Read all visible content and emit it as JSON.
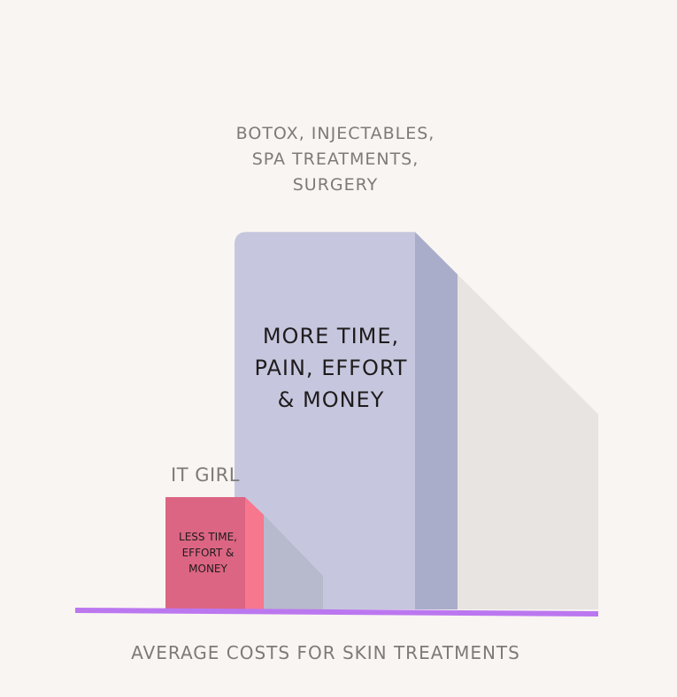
{
  "chart_data": {
    "type": "bar",
    "xlabel": "AVERAGE COSTS FOR SKIN TREATMENTS",
    "ylabel": "",
    "title": "",
    "categories": [
      "IT GIRL",
      "BOTOX, INJECTABLES, SPA TREATMENTS, SURGERY"
    ],
    "values": [
      1,
      3.36
    ],
    "ylim": [
      0,
      3.6
    ],
    "bar_inner_labels": [
      "LESS TIME, EFFORT & MONEY",
      "MORE TIME, PAIN, EFFORT & MONEY"
    ],
    "grid": false,
    "legend": "none",
    "colors": {
      "small_front": "#dc6583",
      "small_side": "#f7778f",
      "tall_front": "#c6c7de",
      "tall_side": "#aaadca",
      "small_shadow": "#b7b9cc",
      "tall_shadow": "#e8e4e1",
      "baseline": "#bb77ef",
      "background": "#f9f5f2"
    }
  }
}
